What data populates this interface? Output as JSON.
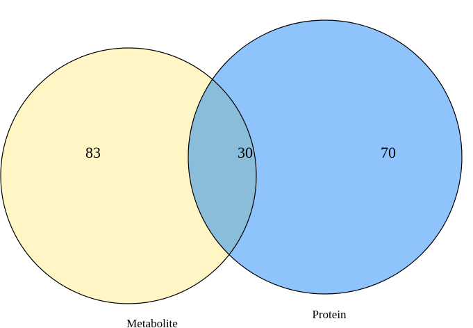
{
  "chart_data": {
    "type": "venn",
    "sets": [
      {
        "name": "Metabolite",
        "only_count": "83",
        "color": "#FFF5C5"
      },
      {
        "name": "Protein",
        "only_count": "70",
        "color": "#8EC3FB"
      }
    ],
    "intersection": {
      "count": "30",
      "color": "#8ABDDA"
    },
    "outline_color": "#000000"
  }
}
